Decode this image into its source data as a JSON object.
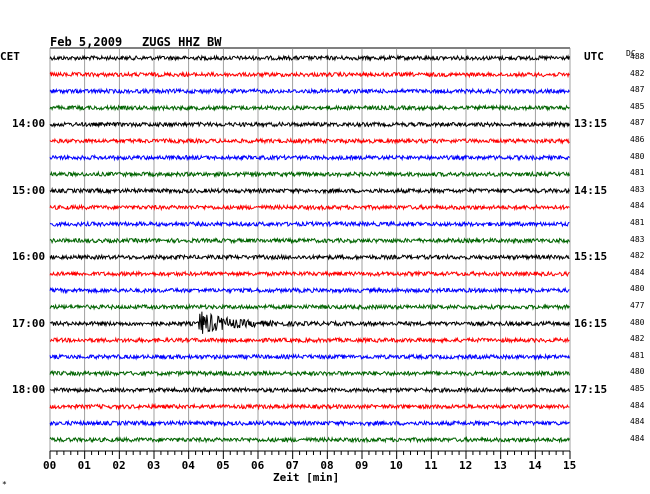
{
  "header": {
    "date": "Feb 5,2009",
    "station": "ZUGS HHZ BW",
    "left_tz": "CET",
    "right_tz": "UTC",
    "dc_label": "DC"
  },
  "footer": {
    "corner_mark": "*"
  },
  "chart_data": {
    "type": "line",
    "title": "Feb 5,2009   ZUGS HHZ BW",
    "xlabel": "Zeit [min]",
    "x_ticks": [
      "00",
      "01",
      "02",
      "03",
      "04",
      "05",
      "06",
      "07",
      "08",
      "09",
      "10",
      "11",
      "12",
      "13",
      "14",
      "15"
    ],
    "xlim": [
      0,
      15
    ],
    "grid": true,
    "trace_colors": [
      "#000000",
      "#ff0000",
      "#0000ff",
      "#006400"
    ],
    "cet_labels": [
      "14:00",
      "15:00",
      "16:00",
      "17:00",
      "18:00"
    ],
    "utc_labels": [
      "13:15",
      "14:15",
      "15:15",
      "16:15",
      "17:15"
    ],
    "dc_offsets": [
      "488",
      "482",
      "487",
      "485",
      "487",
      "486",
      "480",
      "481",
      "483",
      "484",
      "481",
      "483",
      "482",
      "484",
      "480",
      "477",
      "480",
      "482",
      "481",
      "480",
      "485",
      "484",
      "484",
      "484"
    ],
    "event": {
      "trace_index": 16,
      "start_min": 4.3,
      "peak_amplitude": 12,
      "decay_min": 2.2
    }
  }
}
